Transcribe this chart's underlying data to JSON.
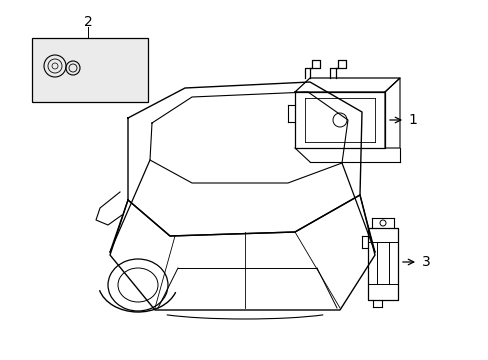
{
  "background_color": "#ffffff",
  "line_color": "#000000",
  "fig_width": 4.89,
  "fig_height": 3.6,
  "dpi": 100,
  "label1_text": "1",
  "label2_text": "2",
  "label3_text": "3",
  "box2_fill": "#ebebeb"
}
